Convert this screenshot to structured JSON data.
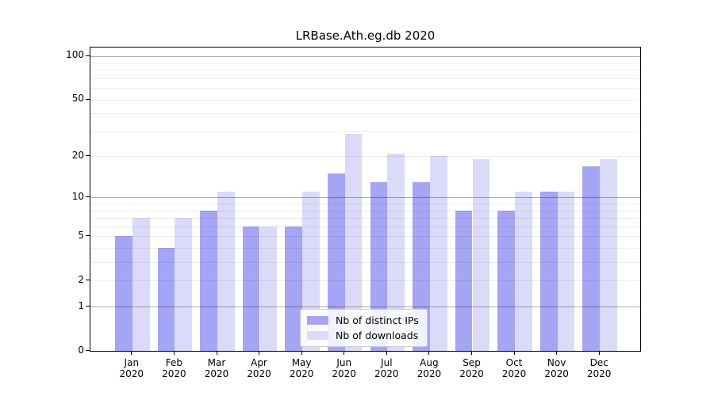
{
  "chart_data": {
    "type": "bar",
    "title": "LRBase.Ath.eg.db 2020",
    "categories": [
      "Jan",
      "Feb",
      "Mar",
      "Apr",
      "May",
      "Jun",
      "Jul",
      "Aug",
      "Sep",
      "Oct",
      "Nov",
      "Dec"
    ],
    "category_year": "2020",
    "series": [
      {
        "name": "Nb of distinct IPs",
        "color": "#a5a5f5",
        "values": [
          5,
          4,
          8,
          6,
          6,
          15,
          13,
          13,
          8,
          8,
          11,
          17
        ]
      },
      {
        "name": "Nb of downloads",
        "color": "#dbdbf9",
        "values": [
          7,
          7,
          11,
          6,
          11,
          29,
          21,
          20,
          19,
          11,
          11,
          19
        ]
      }
    ],
    "yscale": "log1p",
    "ylim": [
      0,
      114
    ],
    "yticks": [
      0,
      1,
      2,
      5,
      10,
      20,
      50,
      100
    ],
    "grid_minor": [
      2,
      3,
      4,
      5,
      6,
      7,
      8,
      9,
      20,
      30,
      40,
      50,
      60,
      70,
      80,
      90
    ],
    "grid_major": [
      1,
      10,
      100
    ],
    "legend_position": "lower-center",
    "grid_on_top_of_bars": true
  }
}
